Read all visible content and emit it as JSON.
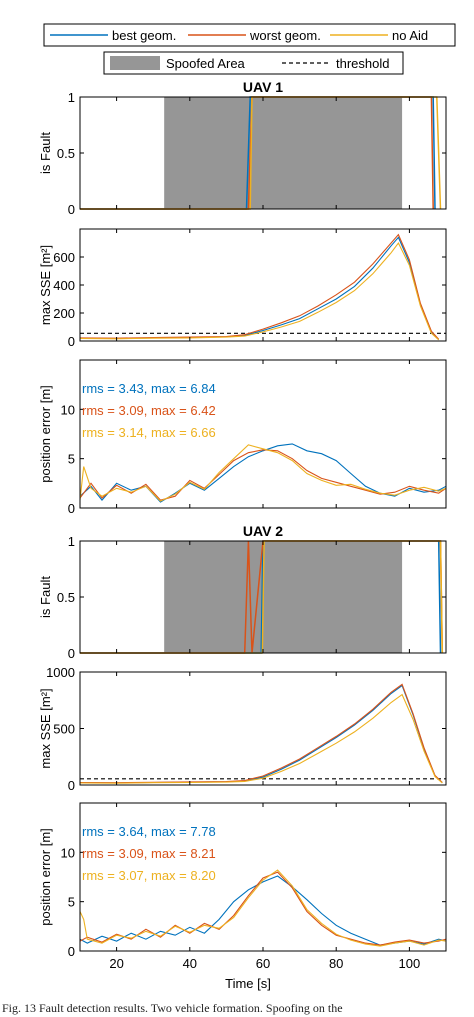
{
  "figure": {
    "caption": "Fig. 13 Fault detection results. Two vehicle formation. Spoofing on the"
  },
  "legend_top": {
    "entries": [
      {
        "name": "best geom.",
        "color": "#0072BD"
      },
      {
        "name": "worst geom.",
        "color": "#D95319"
      },
      {
        "name": "no Aid",
        "color": "#EDB120"
      }
    ]
  },
  "legend_second": {
    "spoofed": "Spoofed Area",
    "threshold": "threshold",
    "spoofed_color": "#969696"
  },
  "x_axis": {
    "label": "Time [s]",
    "range": [
      10,
      110
    ],
    "ticks": [
      20,
      40,
      60,
      80,
      100
    ]
  },
  "chart_data": [
    {
      "id": "uav1_fault",
      "type": "line",
      "title": "UAV 1",
      "ylabel": "is Fault",
      "xlim": [
        10,
        110
      ],
      "ylim": [
        0,
        1
      ],
      "yticks": [
        0,
        0.5,
        1
      ],
      "ytick_labels": [
        "0",
        "0.5",
        "1"
      ],
      "spoofed_area": [
        33,
        98
      ],
      "series": [
        {
          "name": "best geom.",
          "x": [
            10,
            55.5,
            56.5,
            106.5,
            107
          ],
          "y": [
            0,
            0,
            1,
            1,
            0
          ]
        },
        {
          "name": "worst geom.",
          "x": [
            10,
            56,
            57,
            106,
            106.5
          ],
          "y": [
            0,
            0,
            1,
            1,
            0
          ]
        },
        {
          "name": "no Aid",
          "x": [
            10,
            56.5,
            57,
            107.5,
            108.5
          ],
          "y": [
            0,
            0,
            1,
            1,
            0
          ]
        }
      ]
    },
    {
      "id": "uav1_sse",
      "type": "line",
      "ylabel": "max SSE [m²]",
      "xlim": [
        10,
        110
      ],
      "ylim": [
        0,
        800
      ],
      "yticks": [
        0,
        200,
        400,
        600
      ],
      "ytick_labels": [
        "0",
        "200",
        "400",
        "600"
      ],
      "threshold": 55,
      "series": [
        {
          "name": "best geom.",
          "x": [
            10,
            20,
            30,
            40,
            50,
            55,
            60,
            65,
            70,
            75,
            80,
            85,
            90,
            95,
            97,
            100,
            103,
            106,
            108
          ],
          "y": [
            20,
            18,
            22,
            25,
            30,
            40,
            75,
            115,
            160,
            230,
            300,
            390,
            520,
            680,
            740,
            560,
            260,
            60,
            10
          ]
        },
        {
          "name": "worst geom.",
          "x": [
            10,
            20,
            30,
            40,
            50,
            55,
            60,
            65,
            70,
            75,
            80,
            85,
            90,
            95,
            97,
            100,
            103,
            106,
            108
          ],
          "y": [
            22,
            20,
            25,
            28,
            32,
            45,
            85,
            130,
            180,
            250,
            330,
            420,
            550,
            700,
            760,
            580,
            270,
            70,
            12
          ]
        },
        {
          "name": "no Aid",
          "x": [
            10,
            20,
            30,
            40,
            50,
            55,
            60,
            65,
            70,
            75,
            80,
            85,
            90,
            95,
            97,
            100,
            103,
            106,
            108
          ],
          "y": [
            18,
            16,
            20,
            22,
            28,
            35,
            65,
            100,
            140,
            205,
            275,
            360,
            480,
            630,
            700,
            540,
            250,
            55,
            8
          ]
        }
      ]
    },
    {
      "id": "uav1_poserr",
      "type": "line",
      "ylabel": "position error [m]",
      "xlim": [
        10,
        110
      ],
      "ylim": [
        0,
        15
      ],
      "yticks": [
        0,
        5,
        10
      ],
      "ytick_labels": [
        "0",
        "5",
        "10"
      ],
      "annotations": [
        {
          "text": "rms = 3.43, max = 6.84",
          "color": "#0072BD"
        },
        {
          "text": "rms = 3.09, max = 6.42",
          "color": "#D95319"
        },
        {
          "text": "rms = 3.14, max = 6.66",
          "color": "#EDB120"
        }
      ],
      "series": [
        {
          "name": "best geom.",
          "x": [
            10,
            13,
            16,
            20,
            24,
            28,
            32,
            36,
            40,
            44,
            48,
            52,
            56,
            60,
            64,
            68,
            72,
            76,
            80,
            84,
            88,
            92,
            96,
            100,
            104,
            108,
            110
          ],
          "y": [
            1.2,
            2.2,
            0.8,
            2.5,
            1.8,
            2.2,
            0.6,
            1.5,
            2.5,
            1.8,
            3.0,
            4.2,
            5.2,
            5.8,
            6.3,
            6.5,
            5.8,
            5.5,
            4.8,
            3.5,
            2.2,
            1.5,
            1.2,
            2.0,
            1.6,
            1.8,
            2.2
          ]
        },
        {
          "name": "worst geom.",
          "x": [
            10,
            13,
            16,
            20,
            24,
            28,
            32,
            36,
            40,
            44,
            48,
            52,
            56,
            60,
            64,
            68,
            72,
            76,
            80,
            84,
            88,
            92,
            96,
            100,
            104,
            108,
            110
          ],
          "y": [
            1.0,
            2.5,
            1.0,
            2.3,
            1.5,
            2.4,
            0.8,
            1.2,
            2.8,
            2.0,
            3.4,
            4.8,
            5.6,
            5.9,
            5.8,
            5.0,
            3.8,
            3.0,
            2.6,
            2.2,
            1.8,
            1.4,
            1.6,
            2.2,
            1.8,
            1.5,
            2.0
          ]
        },
        {
          "name": "no Aid",
          "x": [
            10,
            11,
            13,
            16,
            20,
            24,
            28,
            32,
            36,
            40,
            44,
            48,
            52,
            56,
            60,
            64,
            68,
            72,
            76,
            80,
            84,
            88,
            92,
            96,
            100,
            104,
            108,
            110
          ],
          "y": [
            0.8,
            4.2,
            2.0,
            1.2,
            2.0,
            1.6,
            2.2,
            0.7,
            1.4,
            2.6,
            1.9,
            3.6,
            5.0,
            6.4,
            6.0,
            5.6,
            4.8,
            3.5,
            2.8,
            2.3,
            2.4,
            1.9,
            1.5,
            1.3,
            1.8,
            2.1,
            1.7,
            2.0
          ]
        }
      ]
    },
    {
      "id": "uav2_fault",
      "type": "line",
      "title": "UAV 2",
      "ylabel": "is Fault",
      "xlim": [
        10,
        110
      ],
      "ylim": [
        0,
        1
      ],
      "yticks": [
        0,
        0.5,
        1
      ],
      "ytick_labels": [
        "0",
        "0.5",
        "1"
      ],
      "spoofed_area": [
        33,
        98
      ],
      "series": [
        {
          "name": "best geom.",
          "x": [
            10,
            59.5,
            60,
            108,
            108.5
          ],
          "y": [
            0,
            0,
            1,
            1,
            0
          ]
        },
        {
          "name": "worst geom.",
          "x": [
            10,
            55,
            56,
            57,
            60,
            108.5,
            109
          ],
          "y": [
            0,
            0,
            1,
            0,
            1,
            1,
            0
          ]
        },
        {
          "name": "no Aid",
          "x": [
            10,
            59.8,
            60.3,
            108.5,
            109
          ],
          "y": [
            0,
            0,
            1,
            1,
            0
          ]
        }
      ]
    },
    {
      "id": "uav2_sse",
      "type": "line",
      "ylabel": "max SSE [m²]",
      "xlim": [
        10,
        110
      ],
      "ylim": [
        0,
        1000
      ],
      "yticks": [
        0,
        500,
        1000
      ],
      "ytick_labels": [
        "0",
        "500",
        "1000"
      ],
      "threshold": 55,
      "series": [
        {
          "name": "best geom.",
          "x": [
            10,
            20,
            30,
            40,
            50,
            55,
            60,
            65,
            70,
            75,
            80,
            85,
            90,
            95,
            98,
            101,
            104,
            107,
            109
          ],
          "y": [
            20,
            18,
            22,
            25,
            28,
            35,
            70,
            140,
            220,
            320,
            420,
            530,
            660,
            810,
            880,
            620,
            320,
            80,
            20
          ]
        },
        {
          "name": "worst geom.",
          "x": [
            10,
            20,
            30,
            40,
            50,
            55,
            60,
            65,
            70,
            75,
            80,
            85,
            90,
            95,
            98,
            101,
            104,
            107,
            109
          ],
          "y": [
            22,
            20,
            24,
            27,
            30,
            40,
            80,
            150,
            230,
            330,
            430,
            540,
            670,
            820,
            890,
            630,
            330,
            85,
            22
          ]
        },
        {
          "name": "no Aid",
          "x": [
            10,
            20,
            30,
            40,
            50,
            55,
            60,
            65,
            70,
            75,
            80,
            85,
            90,
            95,
            98,
            101,
            104,
            107,
            109
          ],
          "y": [
            18,
            16,
            20,
            22,
            26,
            32,
            60,
            120,
            190,
            280,
            370,
            470,
            590,
            730,
            800,
            580,
            300,
            75,
            18
          ]
        }
      ]
    },
    {
      "id": "uav2_poserr",
      "type": "line",
      "ylabel": "position error [m]",
      "xlim": [
        10,
        110
      ],
      "ylim": [
        0,
        15
      ],
      "yticks": [
        0,
        5,
        10
      ],
      "ytick_labels": [
        "0",
        "5",
        "10"
      ],
      "annotations": [
        {
          "text": "rms = 3.64, max = 7.78",
          "color": "#0072BD"
        },
        {
          "text": "rms = 3.09, max = 8.21",
          "color": "#D95319"
        },
        {
          "text": "rms = 3.07, max = 8.20",
          "color": "#EDB120"
        }
      ],
      "series": [
        {
          "name": "best geom.",
          "x": [
            10,
            12,
            16,
            20,
            24,
            28,
            32,
            36,
            40,
            44,
            48,
            52,
            56,
            60,
            64,
            68,
            72,
            76,
            80,
            84,
            88,
            92,
            96,
            100,
            104,
            108,
            110
          ],
          "y": [
            1.2,
            0.8,
            1.5,
            1.0,
            1.8,
            1.2,
            2.0,
            1.6,
            2.4,
            1.8,
            3.2,
            5.0,
            6.2,
            7.0,
            7.6,
            6.5,
            5.2,
            3.8,
            2.6,
            1.8,
            1.2,
            0.6,
            0.8,
            1.0,
            0.7,
            1.2,
            1.0
          ]
        },
        {
          "name": "worst geom.",
          "x": [
            10,
            12,
            16,
            20,
            24,
            28,
            32,
            36,
            40,
            44,
            48,
            52,
            56,
            60,
            64,
            68,
            72,
            76,
            80,
            84,
            88,
            92,
            96,
            100,
            104,
            108,
            110
          ],
          "y": [
            1.0,
            1.4,
            0.9,
            1.7,
            1.2,
            2.2,
            1.4,
            2.6,
            1.8,
            2.8,
            2.2,
            3.6,
            5.6,
            7.4,
            8.0,
            6.4,
            4.0,
            2.6,
            1.6,
            1.2,
            0.8,
            0.6,
            0.9,
            1.1,
            0.8,
            1.0,
            1.2
          ]
        },
        {
          "name": "no Aid",
          "x": [
            10,
            11,
            12,
            16,
            20,
            24,
            28,
            32,
            36,
            40,
            44,
            48,
            52,
            56,
            60,
            64,
            68,
            72,
            76,
            80,
            84,
            88,
            92,
            96,
            100,
            104,
            108,
            110
          ],
          "y": [
            4.0,
            3.2,
            1.2,
            0.8,
            1.6,
            1.3,
            2.0,
            1.5,
            2.5,
            1.9,
            2.6,
            2.3,
            3.4,
            5.4,
            7.2,
            8.2,
            6.6,
            4.2,
            2.8,
            1.7,
            1.1,
            0.7,
            0.5,
            0.8,
            1.0,
            0.6,
            1.1,
            1.0
          ]
        }
      ]
    }
  ]
}
